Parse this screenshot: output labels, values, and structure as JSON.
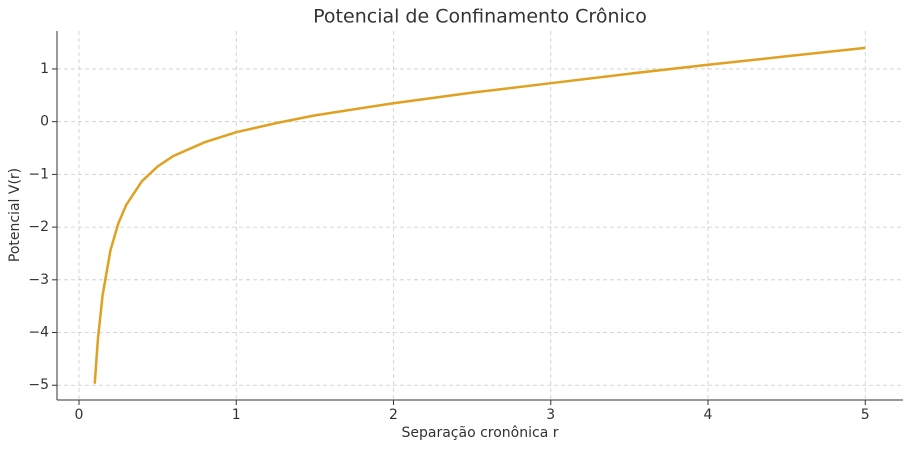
{
  "chart_data": {
    "type": "line",
    "title": "Potencial de Confinamento Crônico",
    "x_label": "Separação cronônica r",
    "y_label": "Potencial V(r)",
    "x": [
      0.1,
      0.12,
      0.15,
      0.2,
      0.25,
      0.3,
      0.4,
      0.5,
      0.6,
      0.8,
      1,
      1.25,
      1.5,
      2,
      2.5,
      3,
      3.5,
      4,
      4.5,
      5
    ],
    "series": [
      {
        "color": "#e0a020",
        "values": [
          -4.97,
          -4.13,
          -3.29,
          -2.44,
          -1.93,
          -1.58,
          -1.13,
          -0.85,
          -0.65,
          -0.39,
          -0.2,
          -0.03,
          0.12,
          0.35,
          0.55,
          0.73,
          0.91,
          1.08,
          1.24,
          1.4
        ]
      }
    ],
    "xlim": [
      -0.14,
      5.24
    ],
    "ylim": [
      -5.28,
      1.72
    ],
    "xticks": [
      0,
      1,
      2,
      3,
      4,
      5
    ],
    "yticks": [
      {
        "value": -5,
        "label": "−5"
      },
      {
        "value": -4,
        "label": "−4"
      },
      {
        "value": -3,
        "label": "−3"
      },
      {
        "value": -2,
        "label": "−2"
      },
      {
        "value": -1,
        "label": "−1"
      },
      0,
      1
    ],
    "grid": true
  }
}
